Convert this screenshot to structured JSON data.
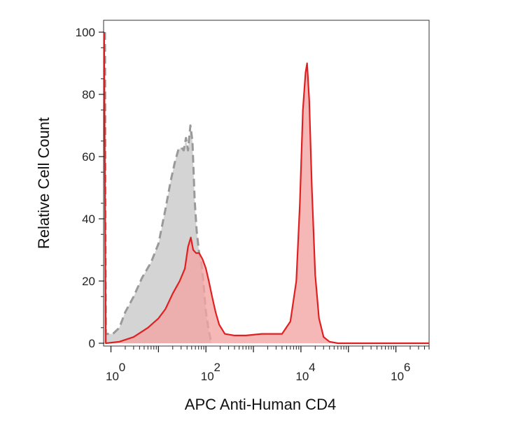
{
  "chart_data": {
    "type": "area",
    "xlabel": "APC Anti-Human CD4",
    "ylabel": "Relative Cell Count",
    "x_scale": "log",
    "xlim": [
      0.7,
      5000000
    ],
    "ylim": [
      0,
      100
    ],
    "x_ticks": [
      {
        "base": "10",
        "exp": "0",
        "value": 1
      },
      {
        "base": "10",
        "exp": "2",
        "value": 100
      },
      {
        "base": "10",
        "exp": "4",
        "value": 10000
      },
      {
        "base": "10",
        "exp": "6",
        "value": 1000000
      }
    ],
    "y_ticks": [
      0,
      20,
      40,
      60,
      80,
      100
    ],
    "grid": false,
    "series": [
      {
        "color": "#999999",
        "fill": "#cfcfcf",
        "line_style": "dashed",
        "points": [
          [
            0.75,
            100
          ],
          [
            0.78,
            3
          ],
          [
            1.1,
            3
          ],
          [
            1.5,
            5
          ],
          [
            2,
            10
          ],
          [
            3,
            15
          ],
          [
            4.5,
            21
          ],
          [
            7,
            26
          ],
          [
            10,
            32
          ],
          [
            14,
            43
          ],
          [
            18,
            52
          ],
          [
            22,
            58
          ],
          [
            26,
            62
          ],
          [
            30,
            63
          ],
          [
            34,
            62
          ],
          [
            38,
            66
          ],
          [
            42,
            62
          ],
          [
            47,
            70
          ],
          [
            52,
            65
          ],
          [
            58,
            46
          ],
          [
            64,
            36
          ],
          [
            72,
            29
          ],
          [
            80,
            26
          ],
          [
            88,
            20
          ],
          [
            100,
            10
          ],
          [
            115,
            4
          ],
          [
            130,
            0
          ]
        ]
      },
      {
        "color": "#e02020",
        "fill": "#f4a3a3",
        "line_style": "solid",
        "points": [
          [
            0.72,
            100
          ],
          [
            0.78,
            0
          ],
          [
            1.5,
            0.5
          ],
          [
            3,
            2
          ],
          [
            6,
            5
          ],
          [
            10,
            8
          ],
          [
            14,
            11
          ],
          [
            20,
            16
          ],
          [
            28,
            20
          ],
          [
            36,
            24
          ],
          [
            42,
            31
          ],
          [
            48,
            34
          ],
          [
            54,
            30
          ],
          [
            62,
            29
          ],
          [
            72,
            29
          ],
          [
            85,
            27
          ],
          [
            100,
            24
          ],
          [
            115,
            20
          ],
          [
            135,
            15
          ],
          [
            160,
            10
          ],
          [
            190,
            6
          ],
          [
            250,
            3
          ],
          [
            400,
            2.5
          ],
          [
            700,
            2.5
          ],
          [
            1500,
            3
          ],
          [
            2500,
            3
          ],
          [
            4000,
            3
          ],
          [
            6000,
            7
          ],
          [
            8000,
            20
          ],
          [
            9500,
            45
          ],
          [
            11000,
            75
          ],
          [
            12500,
            87
          ],
          [
            13500,
            90
          ],
          [
            15000,
            78
          ],
          [
            17000,
            50
          ],
          [
            20000,
            22
          ],
          [
            24000,
            8
          ],
          [
            30000,
            2
          ],
          [
            40000,
            0.5
          ],
          [
            60000,
            0
          ],
          [
            5000000,
            0
          ]
        ]
      }
    ]
  }
}
